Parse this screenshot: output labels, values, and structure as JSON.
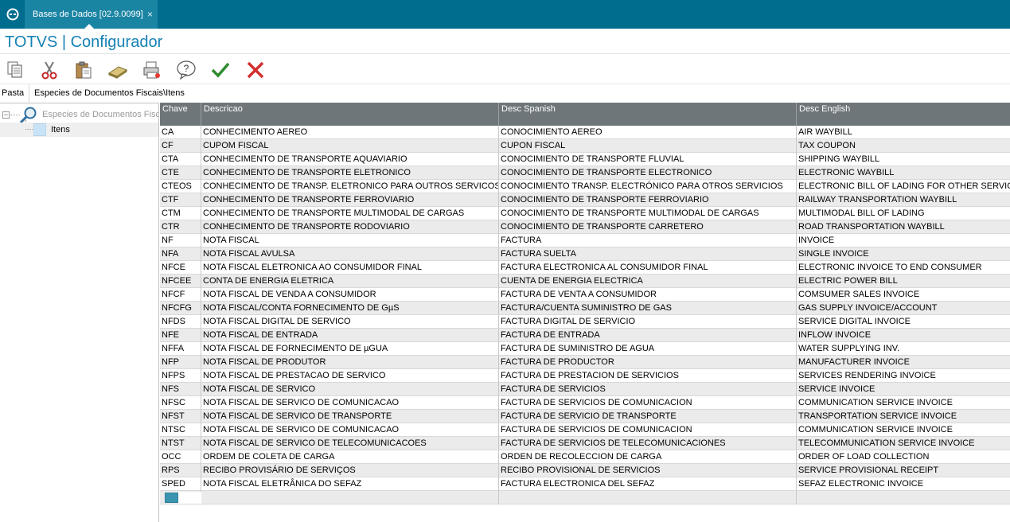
{
  "topbar": {
    "logo_icon": "totvs-logo-icon",
    "tab_label": "Bases de Dados [02.9.0099]",
    "tab_close": "×"
  },
  "app": {
    "title": "TOTVS | Configurador",
    "title_color": "#1582b5"
  },
  "toolbar": {
    "buttons": [
      {
        "name": "copy-button",
        "icon": "copy-icon"
      },
      {
        "name": "cut-button",
        "icon": "scissors-icon"
      },
      {
        "name": "paste-button",
        "icon": "clipboard-icon"
      },
      {
        "name": "eraser-button",
        "icon": "eraser-icon"
      },
      {
        "name": "print-button",
        "icon": "printer-icon"
      },
      {
        "name": "help-button",
        "icon": "help-icon"
      },
      {
        "name": "confirm-button",
        "icon": "checkmark-icon"
      },
      {
        "name": "cancel-button",
        "icon": "cross-icon"
      }
    ]
  },
  "path": {
    "label": "Pasta",
    "value": "Especies de Documentos Fiscais\\Itens"
  },
  "tree": {
    "root_label": "Especies de Documentos Fiscais",
    "child_label": "Itens"
  },
  "grid": {
    "columns": [
      "Chave",
      "Descricao",
      "Desc Spanish",
      "Desc English"
    ],
    "rows": [
      [
        "CA",
        "CONHECIMENTO AEREO",
        "CONOCIMIENTO AEREO",
        "AIR WAYBILL"
      ],
      [
        "CF",
        "CUPOM FISCAL",
        "CUPON FISCAL",
        "TAX COUPON"
      ],
      [
        "CTA",
        "CONHECIMENTO DE TRANSPORTE AQUAVIARIO",
        "CONOCIMIENTO DE TRANSPORTE FLUVIAL",
        "SHIPPING WAYBILL"
      ],
      [
        "CTE",
        "CONHECIMENTO DE TRANSPORTE ELETRONICO",
        "CONOCIMIENTO DE TRANSPORTE ELECTRONICO",
        "ELECTRONIC WAYBILL"
      ],
      [
        "CTEOS",
        "CONHECIMENTO DE TRANSP. ELETRONICO PARA OUTROS SERVICOS",
        "CONOCIMIENTO TRANSP. ELECTRÓNICO PARA OTROS SERVICIOS",
        "ELECTRONIC BILL OF LADING FOR OTHER SERVICES"
      ],
      [
        "CTF",
        "CONHECIMENTO DE TRANSPORTE FERROVIARIO",
        "CONOCIMIENTO DE TRANSPORTE FERROVIARIO",
        "RAILWAY TRANSPORTATION WAYBILL"
      ],
      [
        "CTM",
        "CONHECIMENTO DE TRANSPORTE MULTIMODAL DE CARGAS",
        "CONOCIMIENTO DE TRANSPORTE MULTIMODAL DE CARGAS",
        "MULTIMODAL BILL OF LADING"
      ],
      [
        "CTR",
        "CONHECIMENTO DE TRANSPORTE RODOVIARIO",
        "CONOCIMIENTO DE TRANSPORTE CARRETERO",
        "ROAD TRANSPORTATION WAYBILL"
      ],
      [
        "NF",
        "NOTA FISCAL",
        "FACTURA",
        "INVOICE"
      ],
      [
        "NFA",
        "NOTA FISCAL AVULSA",
        "FACTURA SUELTA",
        "SINGLE INVOICE"
      ],
      [
        "NFCE",
        "NOTA FISCAL ELETRONICA AO CONSUMIDOR FINAL",
        "FACTURA ELECTRONICA AL CONSUMIDOR FINAL",
        "ELECTRONIC INVOICE TO END CONSUMER"
      ],
      [
        "NFCEE",
        "CONTA DE ENERGIA ELETRICA",
        "CUENTA DE ENERGIA ELECTRICA",
        "ELECTRIC POWER BILL"
      ],
      [
        "NFCF",
        "NOTA FISCAL DE VENDA A CONSUMIDOR",
        "FACTURA DE VENTA A CONSUMIDOR",
        "COMSUMER SALES INVOICE"
      ],
      [
        "NFCFG",
        "NOTA FISCAL/CONTA FORNECIMENTO DE GµS",
        "FACTURA/CUENTA SUMINISTRO DE GAS",
        "GAS SUPPLY INVOICE/ACCOUNT"
      ],
      [
        "NFDS",
        "NOTA FISCAL DIGITAL DE SERVICO",
        "FACTURA DIGITAL DE SERVICIO",
        "SERVICE DIGITAL INVOICE"
      ],
      [
        "NFE",
        "NOTA FISCAL DE ENTRADA",
        "FACTURA DE ENTRADA",
        "INFLOW INVOICE"
      ],
      [
        "NFFA",
        "NOTA FISCAL DE FORNECIMENTO DE µGUA",
        "FACTURA DE SUMINISTRO DE AGUA",
        "WATER SUPPLYING INV."
      ],
      [
        "NFP",
        "NOTA FISCAL DE PRODUTOR",
        "FACTURA DE PRODUCTOR",
        "MANUFACTURER INVOICE"
      ],
      [
        "NFPS",
        "NOTA FISCAL DE PRESTACAO DE SERVICO",
        "FACTURA DE PRESTACION DE SERVICIOS",
        "SERVICES RENDERING INVOICE"
      ],
      [
        "NFS",
        "NOTA FISCAL DE SERVICO",
        "FACTURA DE SERVICIOS",
        "SERVICE INVOICE"
      ],
      [
        "NFSC",
        "NOTA FISCAL DE SERVICO DE COMUNICACAO",
        "FACTURA DE SERVICIOS DE COMUNICACION",
        "COMMUNICATION SERVICE INVOICE"
      ],
      [
        "NFST",
        "NOTA FISCAL DE SERVICO DE TRANSPORTE",
        "FACTURA DE SERVICIO DE TRANSPORTE",
        "TRANSPORTATION SERVICE INVOICE"
      ],
      [
        "NTSC",
        "NOTA FISCAL DE SERVICO DE COMUNICACAO",
        "FACTURA DE SERVICIOS DE COMUNICACION",
        "COMMUNICATION SERVICE INVOICE"
      ],
      [
        "NTST",
        "NOTA FISCAL DE SERVICO DE TELECOMUNICACOES",
        "FACTURA DE SERVICIOS DE TELECOMUNICACIONES",
        "TELECOMMUNICATION SERVICE INVOICE"
      ],
      [
        "OCC",
        "ORDEM DE COLETA DE CARGA",
        "ORDEN DE RECOLECCION DE CARGA",
        "ORDER OF LOAD COLLECTION"
      ],
      [
        "RPS",
        "RECIBO PROVISÁRIO DE SERVIÇOS",
        "RECIBO PROVISIONAL DE SERVICIOS",
        "SERVICE PROVISIONAL RECEIPT"
      ],
      [
        "SPED",
        "NOTA FISCAL ELETRÂNICA DO SEFAZ",
        "FACTURA ELECTRONICA DEL SEFAZ",
        "SEFAZ ELECTRONIC INVOICE"
      ]
    ]
  }
}
